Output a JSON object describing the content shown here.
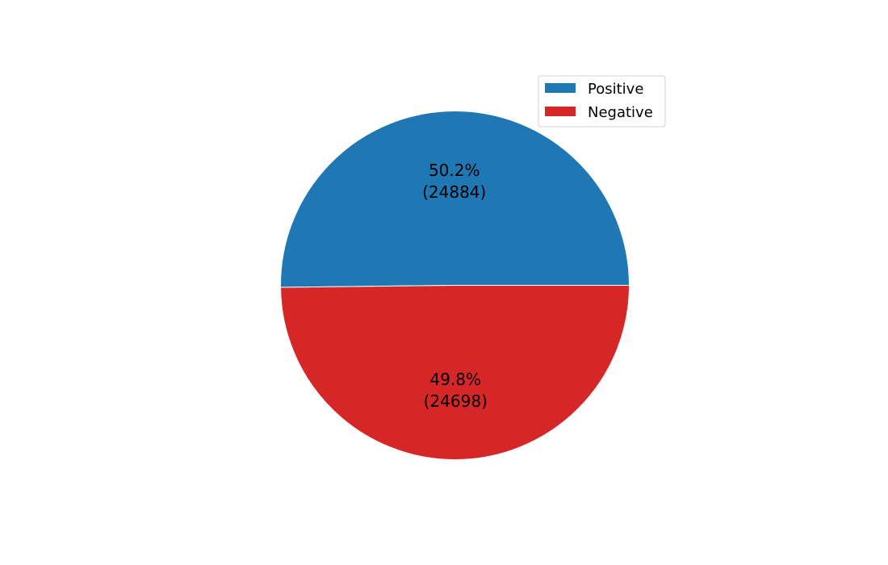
{
  "chart_data": {
    "type": "pie",
    "title": "",
    "categories": [
      "Positive",
      "Negative"
    ],
    "values": [
      24884,
      24698
    ],
    "labels": [
      {
        "percent": "50.2%",
        "count": "(24884)"
      },
      {
        "percent": "49.8%",
        "count": "(24698)"
      }
    ],
    "colors": [
      "#1f77b4",
      "#d62728"
    ],
    "legend": {
      "position": "upper-right",
      "entries": [
        "Positive",
        "Negative"
      ]
    }
  }
}
